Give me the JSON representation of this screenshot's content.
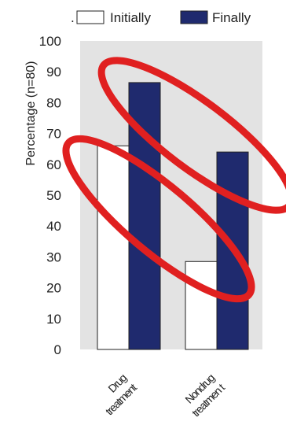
{
  "chart_data": {
    "type": "bar",
    "title": "",
    "xlabel": "",
    "ylabel": "Percentage (n=80)",
    "ylim": [
      0,
      100
    ],
    "yticks": [
      "0",
      "10",
      "20",
      "30",
      "40",
      "50",
      "60",
      "70",
      "80",
      "90",
      "100"
    ],
    "categories": [
      {
        "line1": "Drug",
        "line2": "treatment"
      },
      {
        "line1": "Nondrug",
        "line2": "treatmen    t"
      }
    ],
    "series": [
      {
        "name": "Initially",
        "values": [
          66,
          28.5
        ],
        "color": "#ffffff"
      },
      {
        "name": "Finally",
        "values": [
          86.5,
          64
        ],
        "color": "#1f2a6e"
      }
    ],
    "legend_position": "top",
    "legend_prefix": ".",
    "grid": false,
    "background": "#e3e3e3",
    "annotations": [
      {
        "type": "ellipse-highlight",
        "color": "#e02020",
        "target": "Initially bar of Drug treatment to Initially bar of Nondrug treatment"
      },
      {
        "type": "ellipse-highlight",
        "color": "#e02020",
        "target": "Finally bar of Drug treatment to Finally bar of Nondrug treatment"
      }
    ]
  }
}
